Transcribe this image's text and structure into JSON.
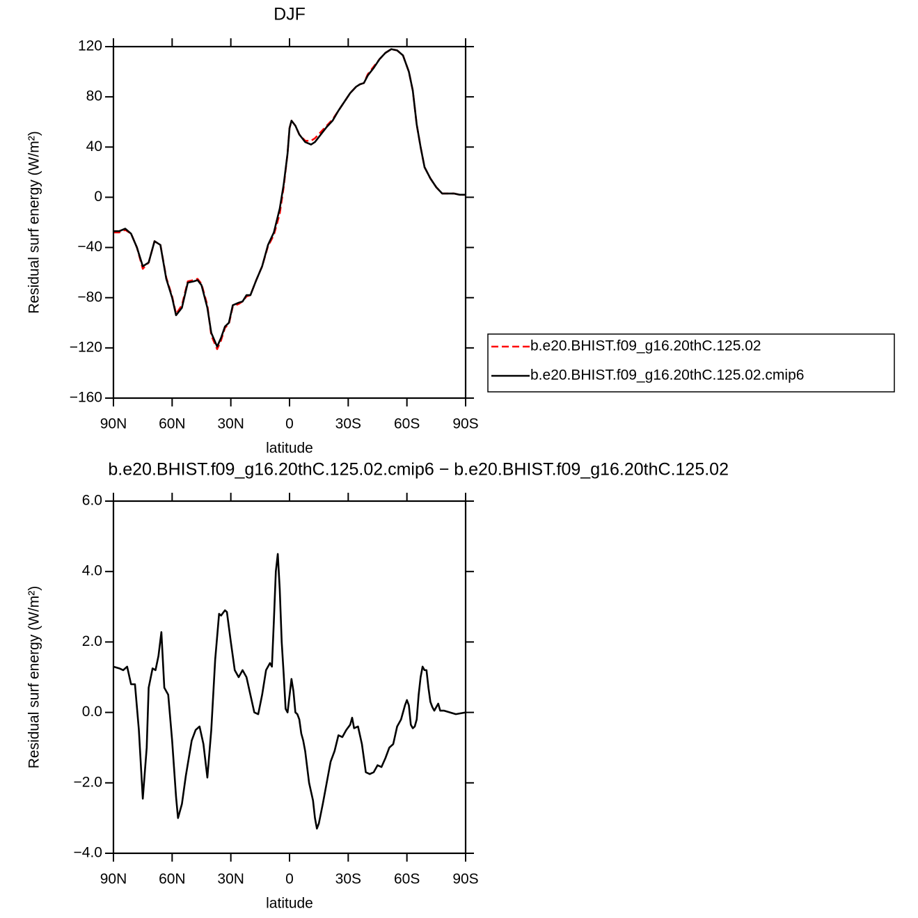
{
  "chart_data": [
    {
      "type": "line",
      "title": "DJF",
      "xlabel": "latitude",
      "ylabel": "Residual surf energy (W/m²)",
      "x": [
        90,
        87,
        84,
        81,
        78,
        75,
        72,
        69,
        66,
        63,
        60,
        58,
        55,
        52,
        49,
        47,
        45,
        42,
        40,
        37,
        35,
        33,
        31,
        29,
        26,
        24,
        22,
        20,
        17,
        14,
        11,
        8,
        5,
        3,
        1,
        0,
        -1,
        -3,
        -5,
        -8,
        -11,
        -13,
        -16,
        -19,
        -22,
        -25,
        -28,
        -31,
        -34,
        -36,
        -38,
        -40,
        -43,
        -46,
        -49,
        -52,
        -55,
        -58,
        -61,
        -63,
        -65,
        -67,
        -69,
        -72,
        -75,
        -78,
        -81,
        -84,
        -87,
        -90
      ],
      "series": [
        {
          "name": "b.e20.BHIST.f09_g16.20thC.125.02",
          "color": "#ff0000",
          "dashed": true,
          "values": [
            -28,
            -28,
            -26,
            -29,
            -40,
            -57,
            -52,
            -35,
            -38,
            -64,
            -79,
            -93,
            -86,
            -67,
            -66,
            -65,
            -69,
            -86,
            -110,
            -121,
            -114,
            -104,
            -101,
            -87,
            -85,
            -83,
            -79,
            -78,
            -66,
            -55,
            -39,
            -30,
            -13,
            8,
            35,
            55,
            61,
            57,
            50,
            45,
            45,
            47,
            52,
            57,
            62,
            69,
            76,
            83,
            88,
            90,
            91,
            98,
            104,
            110,
            115,
            118,
            117,
            113,
            100,
            85,
            58,
            40,
            24,
            15,
            8,
            3,
            3,
            3,
            2,
            2
          ]
        },
        {
          "name": "b.e20.BHIST.f09_g16.20thC.125.02.cmip6",
          "color": "#000000",
          "dashed": false,
          "values": [
            -27,
            -27,
            -25,
            -29,
            -40,
            -55,
            -52,
            -35,
            -38,
            -65,
            -80,
            -94,
            -88,
            -68,
            -67,
            -66,
            -70,
            -88,
            -108,
            -119,
            -112,
            -103,
            -100,
            -86,
            -84,
            -83,
            -78,
            -78,
            -66,
            -55,
            -38,
            -28,
            -9,
            10,
            35,
            55,
            61,
            57,
            50,
            44,
            42,
            44,
            50,
            56,
            61,
            69,
            76,
            83,
            88,
            90,
            91,
            97,
            103,
            110,
            115,
            118,
            117,
            113,
            100,
            85,
            58,
            40,
            24,
            15,
            8,
            3,
            3,
            3,
            2,
            2
          ]
        }
      ],
      "xlim": [
        90,
        -90
      ],
      "xticks": [
        {
          "value": 90,
          "label": "90N"
        },
        {
          "value": 60,
          "label": "60N"
        },
        {
          "value": 30,
          "label": "30N"
        },
        0,
        {
          "value": -30,
          "label": "30S"
        },
        {
          "value": -60,
          "label": "60S"
        },
        {
          "value": -90,
          "label": "90S"
        }
      ],
      "ylim": [
        -160,
        120
      ],
      "yticks": [
        {
          "value": -160,
          "label": "−160"
        },
        {
          "value": -120,
          "label": "−120"
        },
        {
          "value": -80,
          "label": "−80"
        },
        {
          "value": -40,
          "label": "−40"
        },
        0,
        40,
        80,
        120
      ],
      "legend": "right"
    },
    {
      "type": "line",
      "title": "b.e20.BHIST.f09_g16.20thC.125.02.cmip6 − b.e20.BHIST.f09_g16.20thC.125.02",
      "xlabel": "latitude",
      "ylabel": "Residual surf energy (W/m²)",
      "x": [
        90,
        87,
        85,
        83,
        81,
        79,
        77,
        75,
        73,
        72,
        70,
        68.5,
        67,
        65.5,
        64,
        62,
        60,
        58,
        57,
        55,
        53,
        50,
        48,
        46,
        44,
        42,
        40,
        38,
        36,
        35,
        33,
        32,
        30,
        28,
        26,
        24,
        22,
        20,
        18,
        16,
        14,
        12,
        10,
        9,
        8,
        7,
        6,
        5,
        4,
        3,
        2,
        1,
        -1,
        -2,
        -3,
        -4,
        -5,
        -6,
        -7,
        -8,
        -10,
        -12,
        -13,
        -14,
        -15,
        -17,
        -19,
        -21,
        -23,
        -25,
        -27,
        -29,
        -31,
        -32,
        -33,
        -35,
        -37,
        -39,
        -41,
        -43,
        -45,
        -47,
        -49,
        -51,
        -53,
        -55,
        -57,
        -59,
        -60,
        -61,
        -62,
        -63,
        -64,
        -65,
        -66,
        -67,
        -68,
        -69,
        -70,
        -71,
        -72,
        -73,
        -74,
        -75,
        -76,
        -77,
        -79,
        -82,
        -85,
        -90
      ],
      "values": [
        1.3,
        1.25,
        1.2,
        1.3,
        0.8,
        0.8,
        -0.5,
        -2.45,
        -1.0,
        0.7,
        1.25,
        1.2,
        1.6,
        2.28,
        0.7,
        0.5,
        -0.8,
        -2.4,
        -3.0,
        -2.6,
        -1.8,
        -0.8,
        -0.5,
        -0.4,
        -0.9,
        -1.85,
        -0.5,
        1.5,
        2.8,
        2.75,
        2.9,
        2.85,
        2.0,
        1.2,
        1.0,
        1.2,
        1.0,
        0.5,
        0.0,
        -0.05,
        0.5,
        1.2,
        1.4,
        1.3,
        2.6,
        4.0,
        4.5,
        3.5,
        2.0,
        1.1,
        0.1,
        0.0,
        0.95,
        0.6,
        0.0,
        -0.05,
        -0.2,
        -0.6,
        -0.8,
        -1.1,
        -2.0,
        -2.5,
        -3.0,
        -3.3,
        -3.15,
        -2.6,
        -2.0,
        -1.4,
        -1.1,
        -0.65,
        -0.7,
        -0.5,
        -0.35,
        -0.15,
        -0.45,
        -0.4,
        -0.9,
        -1.7,
        -1.75,
        -1.7,
        -1.5,
        -1.55,
        -1.3,
        -1.0,
        -0.9,
        -0.4,
        -0.2,
        0.2,
        0.35,
        0.2,
        -0.35,
        -0.45,
        -0.4,
        -0.2,
        0.5,
        1.0,
        1.3,
        1.2,
        1.2,
        0.7,
        0.3,
        0.15,
        0.05,
        0.15,
        0.25,
        0.05,
        0.05,
        0.0,
        -0.05,
        0.0
      ],
      "color": "#000000",
      "xlim": [
        90,
        -90
      ],
      "xticks": [
        {
          "value": 90,
          "label": "90N"
        },
        {
          "value": 60,
          "label": "60N"
        },
        {
          "value": 30,
          "label": "30N"
        },
        0,
        {
          "value": -30,
          "label": "30S"
        },
        {
          "value": -60,
          "label": "60S"
        },
        {
          "value": -90,
          "label": "90S"
        }
      ],
      "ylim": [
        -4,
        6
      ],
      "yticks": [
        {
          "value": -4,
          "label": "−4.0"
        },
        {
          "value": -2,
          "label": "−2.0"
        },
        {
          "value": 0,
          "label": "0.0"
        },
        {
          "value": 2,
          "label": "2.0"
        },
        {
          "value": 4,
          "label": "4.0"
        },
        {
          "value": 6,
          "label": "6.0"
        }
      ]
    }
  ]
}
